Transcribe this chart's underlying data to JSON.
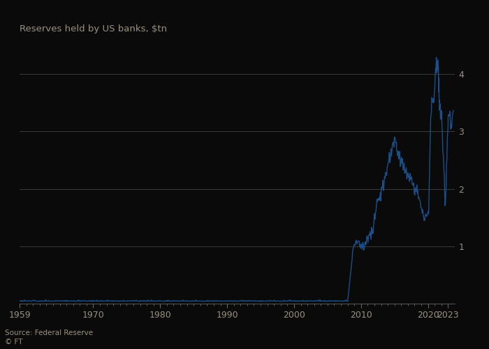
{
  "title": "Reserves held by US banks, $tn",
  "source_text": "Source: Federal Reserve\n© FT",
  "line_color": "#1a4f8a",
  "background_color": "#0a0a0a",
  "text_color": "#999080",
  "grid_color": "#ffffff",
  "axis_color": "#666666",
  "xlim": [
    1959,
    2024
  ],
  "ylim": [
    0,
    4.5
  ],
  "yticks": [
    1,
    2,
    3,
    4
  ],
  "xtick_positions": [
    1959,
    1970,
    1980,
    1990,
    2000,
    2010,
    2020,
    2023
  ],
  "xtick_labels": [
    "1959",
    "1970",
    "1980",
    "1990",
    "2000",
    "2010",
    "2020",
    "2023"
  ]
}
